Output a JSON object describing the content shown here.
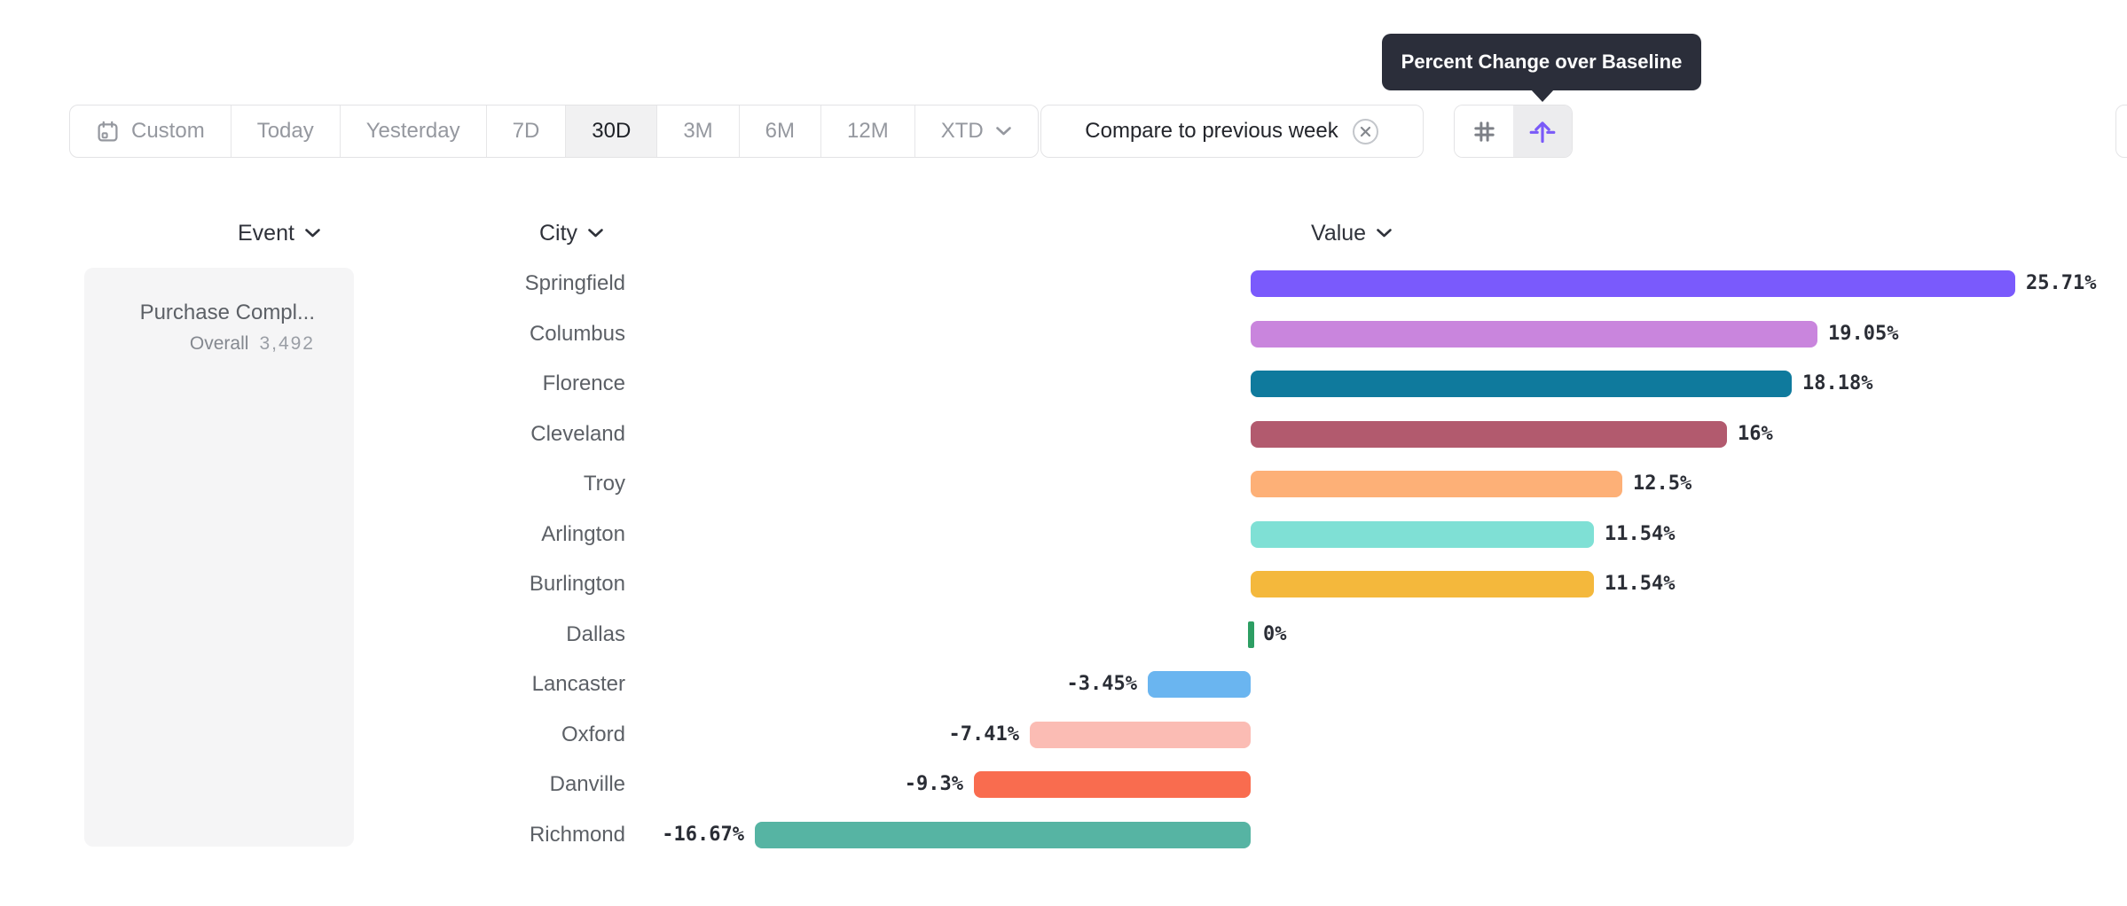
{
  "tooltip": {
    "text": "Percent Change over Baseline"
  },
  "toolbar": {
    "date_ranges": [
      {
        "label": "Custom",
        "icon": "calendar",
        "selected": false
      },
      {
        "label": "Today",
        "selected": false
      },
      {
        "label": "Yesterday",
        "selected": false
      },
      {
        "label": "7D",
        "selected": false
      },
      {
        "label": "30D",
        "selected": true
      },
      {
        "label": "3M",
        "selected": false
      },
      {
        "label": "6M",
        "selected": false
      },
      {
        "label": "12M",
        "selected": false
      },
      {
        "label": "XTD",
        "chevron": true,
        "selected": false
      }
    ],
    "compare_button": {
      "label": "Compare to previous week",
      "icon": "dismiss-circle"
    },
    "view_toggle": [
      {
        "icon": "hash",
        "selected": false
      },
      {
        "icon": "baseline-lift",
        "selected": true
      }
    ]
  },
  "columns": {
    "event": "Event",
    "city": "City",
    "value": "Value"
  },
  "event_card": {
    "title": "Purchase Compl...",
    "overall_label": "Overall",
    "overall_value": "3,492"
  },
  "chart_data": {
    "type": "bar",
    "orientation": "horizontal",
    "title": "Percent Change over Baseline",
    "categories": [
      "Springfield",
      "Columbus",
      "Florence",
      "Cleveland",
      "Troy",
      "Arlington",
      "Burlington",
      "Dallas",
      "Lancaster",
      "Oxford",
      "Danville",
      "Richmond"
    ],
    "values": [
      25.71,
      19.05,
      18.18,
      16,
      12.5,
      11.54,
      11.54,
      0,
      -3.45,
      -7.41,
      -9.3,
      -16.67
    ],
    "labels": [
      "25.71%",
      "19.05%",
      "18.18%",
      "16%",
      "12.5%",
      "11.54%",
      "11.54%",
      "0%",
      "-3.45%",
      "-7.41%",
      "-9.3%",
      "-16.67%"
    ],
    "colors": [
      "#7a5afc",
      "#c985dd",
      "#0f7a9d",
      "#b25a6e",
      "#fdb077",
      "#7fe0d5",
      "#f4b83c",
      "#2d9e63",
      "#6ab5f0",
      "#fbbcb4",
      "#f96c4f",
      "#56b4a3"
    ],
    "unit": "%",
    "baseline": 0,
    "xlim": [
      -16.67,
      25.71
    ],
    "grid": false,
    "legend": false
  },
  "colors": {
    "accent": "#7a5af8",
    "tooltip_bg": "#2b2e3a",
    "selected_bg": "#f1f1f2",
    "border": "#e3e3e5",
    "zero_tick": "#2d9e63"
  }
}
